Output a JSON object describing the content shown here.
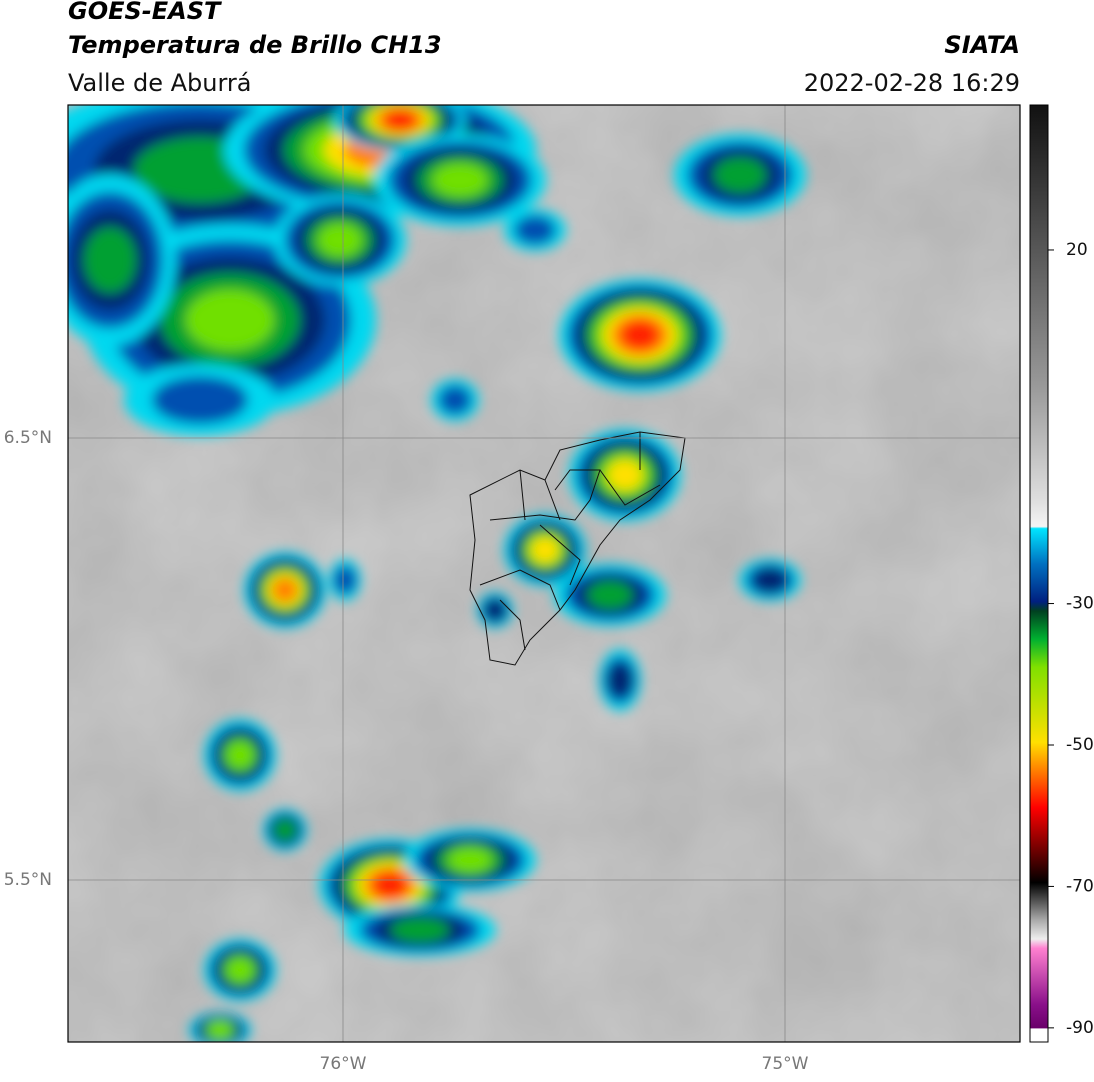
{
  "header": {
    "title": "GOES-EAST",
    "subtitle": "Temperatura de Brillo CH13",
    "region": "Valle de Aburrá",
    "source": "SIATA",
    "timestamp": "2022-02-28 16:29"
  },
  "map": {
    "latitude_labels": [
      "6.5°N",
      "5.5°N"
    ],
    "longitude_labels": [
      "76°W",
      "75°W"
    ]
  },
  "colorbar": {
    "lim": [
      -92,
      40.5
    ],
    "ticks": [
      20,
      -30,
      -50,
      -70,
      -90
    ]
  }
}
